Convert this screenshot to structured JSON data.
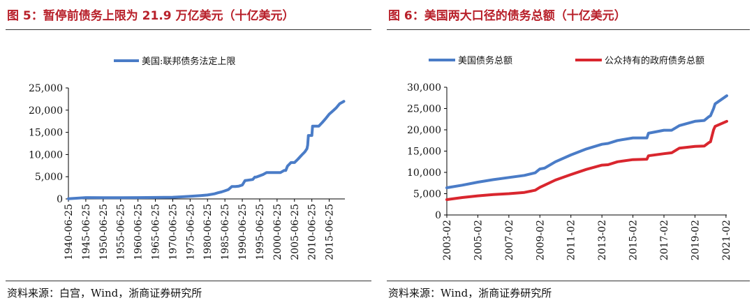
{
  "charts": [
    {
      "figure_title": "图 5：暂停前债务上限为 21.9 万亿美元（十亿美元）",
      "source": "资料来源：白宫，Wind，浙商证券研究所"
    },
    {
      "figure_title": "图 6：美国两大口径的债务总额（十亿美元）",
      "source": "资料来源：Wind，浙商证券研究所"
    }
  ],
  "colors": {
    "title": "#b8202a",
    "blue": "#4a7cc7",
    "red": "#d9262e"
  },
  "chart_data": [
    {
      "type": "line",
      "title": "图 5：暂停前债务上限为 21.9 万亿美元（十亿美元）",
      "xlabel": "",
      "ylabel": "",
      "ylim": [
        0,
        25000
      ],
      "yticks": [
        "0",
        "5,000",
        "10,000",
        "15,000",
        "20,000",
        "25,000"
      ],
      "xticks": [
        "1940-06-25",
        "1945-06-25",
        "1950-06-25",
        "1955-06-25",
        "1960-06-25",
        "1965-06-25",
        "1970-06-25",
        "1975-06-25",
        "1980-06-25",
        "1985-06-25",
        "1990-06-25",
        "1995-06-25",
        "2000-06-25",
        "2005-06-25",
        "2010-06-25",
        "2015-06-25"
      ],
      "xrange": [
        1940.0,
        2019.5
      ],
      "series": [
        {
          "name": "美国:联邦债务法定上限",
          "color": "#4a7cc7",
          "x": [
            1940,
            1945,
            1950,
            1955,
            1960,
            1965,
            1970,
            1972,
            1975,
            1978,
            1980,
            1982,
            1983,
            1984,
            1985,
            1986,
            1987,
            1988,
            1989,
            1990,
            1990.8,
            1991,
            1993,
            1993.6,
            1994,
            1996,
            1997,
            2000,
            2001,
            2002,
            2002.5,
            2003,
            2004,
            2005,
            2006,
            2007,
            2008,
            2008.6,
            2008.8,
            2009,
            2010,
            2010.2,
            2011,
            2012,
            2013,
            2014,
            2015,
            2016,
            2017,
            2018,
            2019.2
          ],
          "values": [
            45,
            300,
            275,
            281,
            293,
            324,
            377,
            450,
            577,
            752,
            879,
            1143,
            1390,
            1573,
            1823,
            2111,
            2800,
            2800,
            2870,
            3123,
            4145,
            4145,
            4370,
            4900,
            4900,
            5500,
            5950,
            5950,
            5950,
            6400,
            6400,
            7384,
            8184,
            8184,
            8965,
            9815,
            10615,
            11315,
            12104,
            14294,
            14294,
            16394,
            16394,
            16394,
            17212,
            18113,
            19100,
            19800,
            20500,
            21450,
            21987
          ]
        }
      ]
    },
    {
      "type": "line",
      "title": "图 6：美国两大口径的债务总额（十亿美元）",
      "xlabel": "",
      "ylabel": "",
      "ylim": [
        0,
        30000
      ],
      "yticks": [
        "0",
        "5,000",
        "10,000",
        "15,000",
        "20,000",
        "25,000",
        "30,000"
      ],
      "xticks": [
        "2003-02",
        "2005-02",
        "2007-02",
        "2009-02",
        "2011-02",
        "2013-02",
        "2015-02",
        "2017-02",
        "2019-02",
        "2021-02"
      ],
      "xrange": [
        2003.0,
        2021.05
      ],
      "series": [
        {
          "name": "美国债务总额",
          "color": "#4a7cc7",
          "x": [
            2003.0,
            2004,
            2005,
            2006,
            2007,
            2008,
            2008.7,
            2009.0,
            2009.3,
            2010,
            2011,
            2012,
            2013,
            2013.4,
            2014,
            2015,
            2015.9,
            2016,
            2017,
            2017.5,
            2018,
            2019,
            2019.6,
            2019.9,
            2020.0,
            2020.2,
            2020.3,
            2021.05
          ],
          "values": [
            6400,
            7000,
            7700,
            8300,
            8800,
            9300,
            9900,
            10800,
            11000,
            12500,
            14100,
            15500,
            16600,
            16800,
            17500,
            18100,
            18100,
            19200,
            19900,
            19900,
            21000,
            22000,
            22200,
            23100,
            23300,
            25000,
            26100,
            28000
          ]
        },
        {
          "name": "公众持有的政府债务总额",
          "color": "#d9262e",
          "x": [
            2003.0,
            2004,
            2005,
            2006,
            2007,
            2008,
            2008.7,
            2009.0,
            2009.3,
            2010,
            2011,
            2012,
            2013,
            2013.4,
            2014,
            2015,
            2015.9,
            2016,
            2017,
            2017.5,
            2018,
            2019,
            2019.6,
            2019.9,
            2020.0,
            2020.2,
            2020.3,
            2021.05
          ],
          "values": [
            3600,
            4100,
            4500,
            4800,
            5000,
            5300,
            5800,
            6500,
            7000,
            8200,
            9500,
            10700,
            11700,
            11800,
            12500,
            13000,
            13100,
            13900,
            14400,
            14600,
            15700,
            16100,
            16200,
            17000,
            17200,
            20000,
            20800,
            22000
          ]
        }
      ]
    }
  ]
}
